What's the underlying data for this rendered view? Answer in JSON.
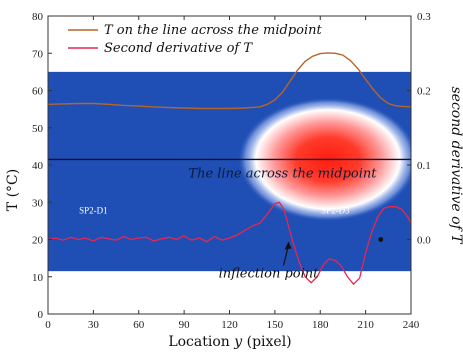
{
  "chart_data": {
    "type": "line",
    "x_range": [
      0,
      240
    ],
    "x_ticks": [
      "0",
      "30",
      "60",
      "90",
      "120",
      "150",
      "180",
      "210",
      "240"
    ],
    "xlabel": "Location y (pixel)",
    "xlabel_plain": "Location ",
    "xlabel_var": "y",
    "xlabel_unit": " (pixel)",
    "y_left": {
      "range": [
        0,
        80
      ],
      "ticks": [
        "0",
        "10",
        "20",
        "30",
        "40",
        "50",
        "60",
        "70",
        "80"
      ],
      "label": "T (°C)"
    },
    "y_right": {
      "range": [
        -0.1,
        0.3
      ],
      "ticks": [
        "0.0",
        "0.1",
        "0.2",
        "0.3"
      ],
      "label": "second derivative of T"
    },
    "legend": [
      {
        "name": "T on the line across the midpoint",
        "color": "#b5652a"
      },
      {
        "name": "Second derivative of T",
        "color": "#e8264f"
      }
    ],
    "series": [
      {
        "name": "T on the line across the midpoint",
        "axis": "left",
        "color": "#b5652a",
        "x": [
          0,
          10,
          20,
          30,
          40,
          50,
          60,
          70,
          80,
          90,
          100,
          110,
          120,
          130,
          140,
          145,
          150,
          155,
          160,
          165,
          170,
          175,
          180,
          185,
          190,
          195,
          200,
          205,
          210,
          215,
          220,
          225,
          230,
          235,
          240
        ],
        "y": [
          56.3,
          56.4,
          56.5,
          56.5,
          56.3,
          56.0,
          55.8,
          55.6,
          55.4,
          55.3,
          55.2,
          55.2,
          55.2,
          55.3,
          55.6,
          56.3,
          57.5,
          59.5,
          62.5,
          65.5,
          67.8,
          69.2,
          69.9,
          70.1,
          70.0,
          69.5,
          68.0,
          65.8,
          63.0,
          60.3,
          58.0,
          56.5,
          55.9,
          55.7,
          55.6
        ]
      },
      {
        "name": "Second derivative of T",
        "axis": "right",
        "color": "#e8264f",
        "x": [
          0,
          5,
          10,
          15,
          20,
          25,
          30,
          35,
          40,
          45,
          50,
          55,
          60,
          65,
          70,
          75,
          80,
          85,
          90,
          95,
          100,
          105,
          110,
          115,
          120,
          125,
          130,
          135,
          140,
          145,
          150,
          153,
          156,
          159,
          162,
          166,
          170,
          174,
          178,
          182,
          186,
          190,
          194,
          198,
          202,
          206,
          210,
          214,
          218,
          222,
          226,
          230,
          234,
          238,
          240
        ],
        "y": [
          0.0,
          0.002,
          -0.001,
          0.003,
          0.0,
          0.002,
          -0.002,
          0.003,
          0.001,
          -0.001,
          0.004,
          0.0,
          0.002,
          0.003,
          -0.002,
          0.001,
          0.003,
          0.0,
          0.005,
          -0.001,
          0.002,
          -0.003,
          0.004,
          -0.001,
          0.002,
          0.006,
          0.012,
          0.018,
          0.022,
          0.034,
          0.048,
          0.05,
          0.04,
          0.018,
          -0.004,
          -0.03,
          -0.05,
          -0.058,
          -0.05,
          -0.034,
          -0.026,
          -0.028,
          -0.036,
          -0.05,
          -0.06,
          -0.052,
          -0.018,
          0.01,
          0.03,
          0.042,
          0.044,
          0.044,
          0.04,
          0.03,
          0.022
        ]
      }
    ],
    "annotations": {
      "midpoint_line_label": "The line across the midpoint",
      "midpoint_line_T": 41.5,
      "left_region_label": "SP2-D1",
      "right_region_label": "SP2-D3",
      "inflection_label": "inflection point",
      "inflection_x": 159,
      "marker_x": 220
    },
    "heatmap": {
      "T_top": 65,
      "T_bottom": 11.5,
      "base_color": "#1f4fb5",
      "hot_color": "#ff2a1a"
    }
  }
}
